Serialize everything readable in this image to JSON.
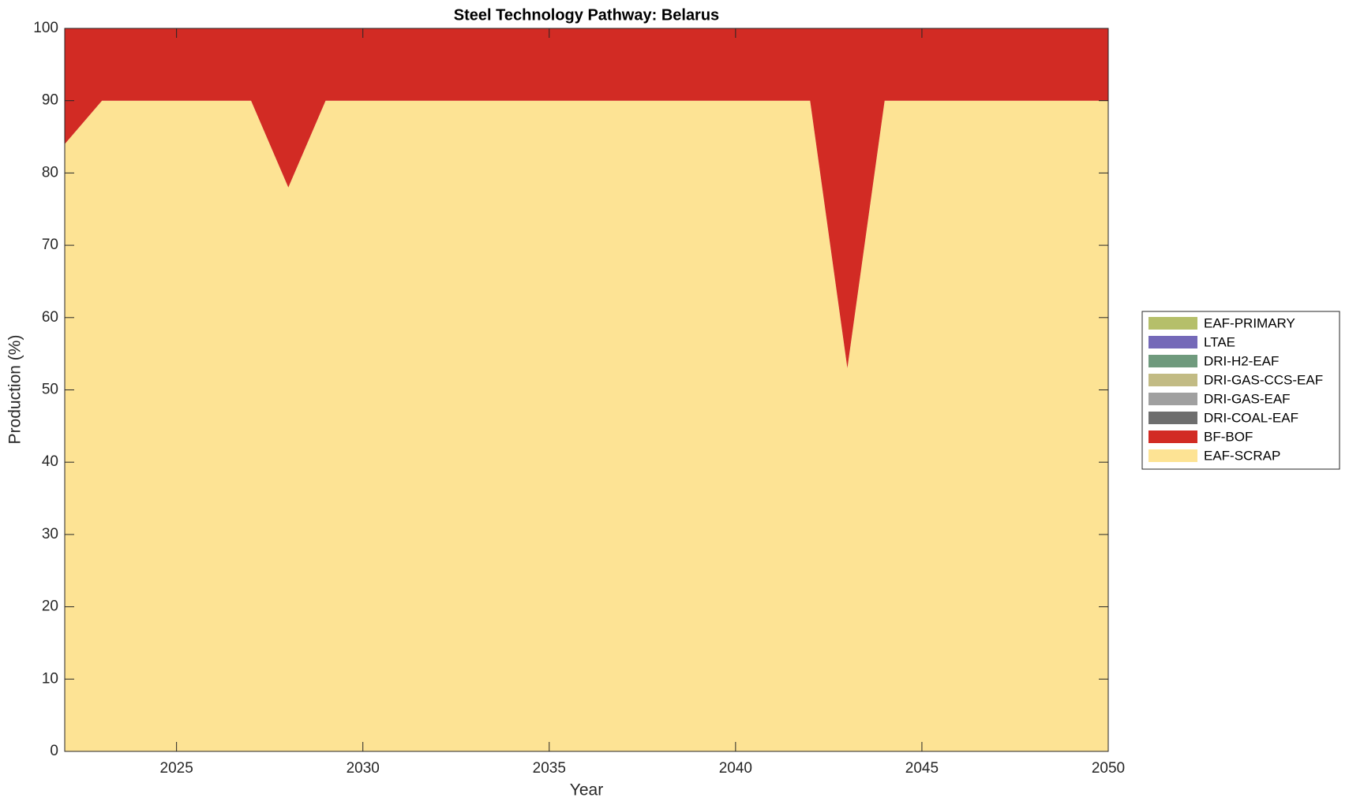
{
  "chart_data": {
    "type": "stacked-area",
    "title": "Steel Technology Pathway: Belarus",
    "x_label": "Year",
    "y_label": "Production (%)",
    "x": [
      2022,
      2023,
      2024,
      2025,
      2026,
      2027,
      2028,
      2029,
      2030,
      2031,
      2032,
      2033,
      2034,
      2035,
      2036,
      2037,
      2038,
      2039,
      2040,
      2041,
      2042,
      2043,
      2044,
      2045,
      2046,
      2047,
      2048,
      2049,
      2050
    ],
    "series": [
      {
        "name": "EAF-SCRAP",
        "color": "#fde394",
        "values": [
          84,
          90,
          90,
          90,
          90,
          90,
          78,
          90,
          90,
          90,
          90,
          90,
          90,
          90,
          90,
          90,
          90,
          90,
          90,
          90,
          90,
          53,
          90,
          90,
          90,
          90,
          90,
          90,
          90
        ]
      },
      {
        "name": "BF-BOF",
        "color": "#d22b24",
        "values": [
          16,
          10,
          10,
          10,
          10,
          10,
          22,
          10,
          10,
          10,
          10,
          10,
          10,
          10,
          10,
          10,
          10,
          10,
          10,
          10,
          10,
          47,
          10,
          10,
          10,
          10,
          10,
          10,
          10
        ]
      },
      {
        "name": "DRI-COAL-EAF",
        "color": "#6e6e6e",
        "values": [
          0,
          0,
          0,
          0,
          0,
          0,
          0,
          0,
          0,
          0,
          0,
          0,
          0,
          0,
          0,
          0,
          0,
          0,
          0,
          0,
          0,
          0,
          0,
          0,
          0,
          0,
          0,
          0,
          0
        ]
      },
      {
        "name": "DRI-GAS-EAF",
        "color": "#a0a0a0",
        "values": [
          0,
          0,
          0,
          0,
          0,
          0,
          0,
          0,
          0,
          0,
          0,
          0,
          0,
          0,
          0,
          0,
          0,
          0,
          0,
          0,
          0,
          0,
          0,
          0,
          0,
          0,
          0,
          0,
          0
        ]
      },
      {
        "name": "DRI-GAS-CCS-EAF",
        "color": "#c2bb84",
        "values": [
          0,
          0,
          0,
          0,
          0,
          0,
          0,
          0,
          0,
          0,
          0,
          0,
          0,
          0,
          0,
          0,
          0,
          0,
          0,
          0,
          0,
          0,
          0,
          0,
          0,
          0,
          0,
          0,
          0
        ]
      },
      {
        "name": "DRI-H2-EAF",
        "color": "#6f9a7d",
        "values": [
          0,
          0,
          0,
          0,
          0,
          0,
          0,
          0,
          0,
          0,
          0,
          0,
          0,
          0,
          0,
          0,
          0,
          0,
          0,
          0,
          0,
          0,
          0,
          0,
          0,
          0,
          0,
          0,
          0
        ]
      },
      {
        "name": "LTAE",
        "color": "#7469b8",
        "values": [
          0,
          0,
          0,
          0,
          0,
          0,
          0,
          0,
          0,
          0,
          0,
          0,
          0,
          0,
          0,
          0,
          0,
          0,
          0,
          0,
          0,
          0,
          0,
          0,
          0,
          0,
          0,
          0,
          0
        ]
      },
      {
        "name": "EAF-PRIMARY",
        "color": "#b5bf6a",
        "values": [
          0,
          0,
          0,
          0,
          0,
          0,
          0,
          0,
          0,
          0,
          0,
          0,
          0,
          0,
          0,
          0,
          0,
          0,
          0,
          0,
          0,
          0,
          0,
          0,
          0,
          0,
          0,
          0,
          0
        ]
      }
    ],
    "xlim": [
      2022,
      2050
    ],
    "xticks": [
      2025,
      2030,
      2035,
      2040,
      2045,
      2050
    ],
    "ylim": [
      0,
      100
    ],
    "yticks": [
      0,
      10,
      20,
      30,
      40,
      50,
      60,
      70,
      80,
      90,
      100
    ],
    "legend": "right"
  }
}
